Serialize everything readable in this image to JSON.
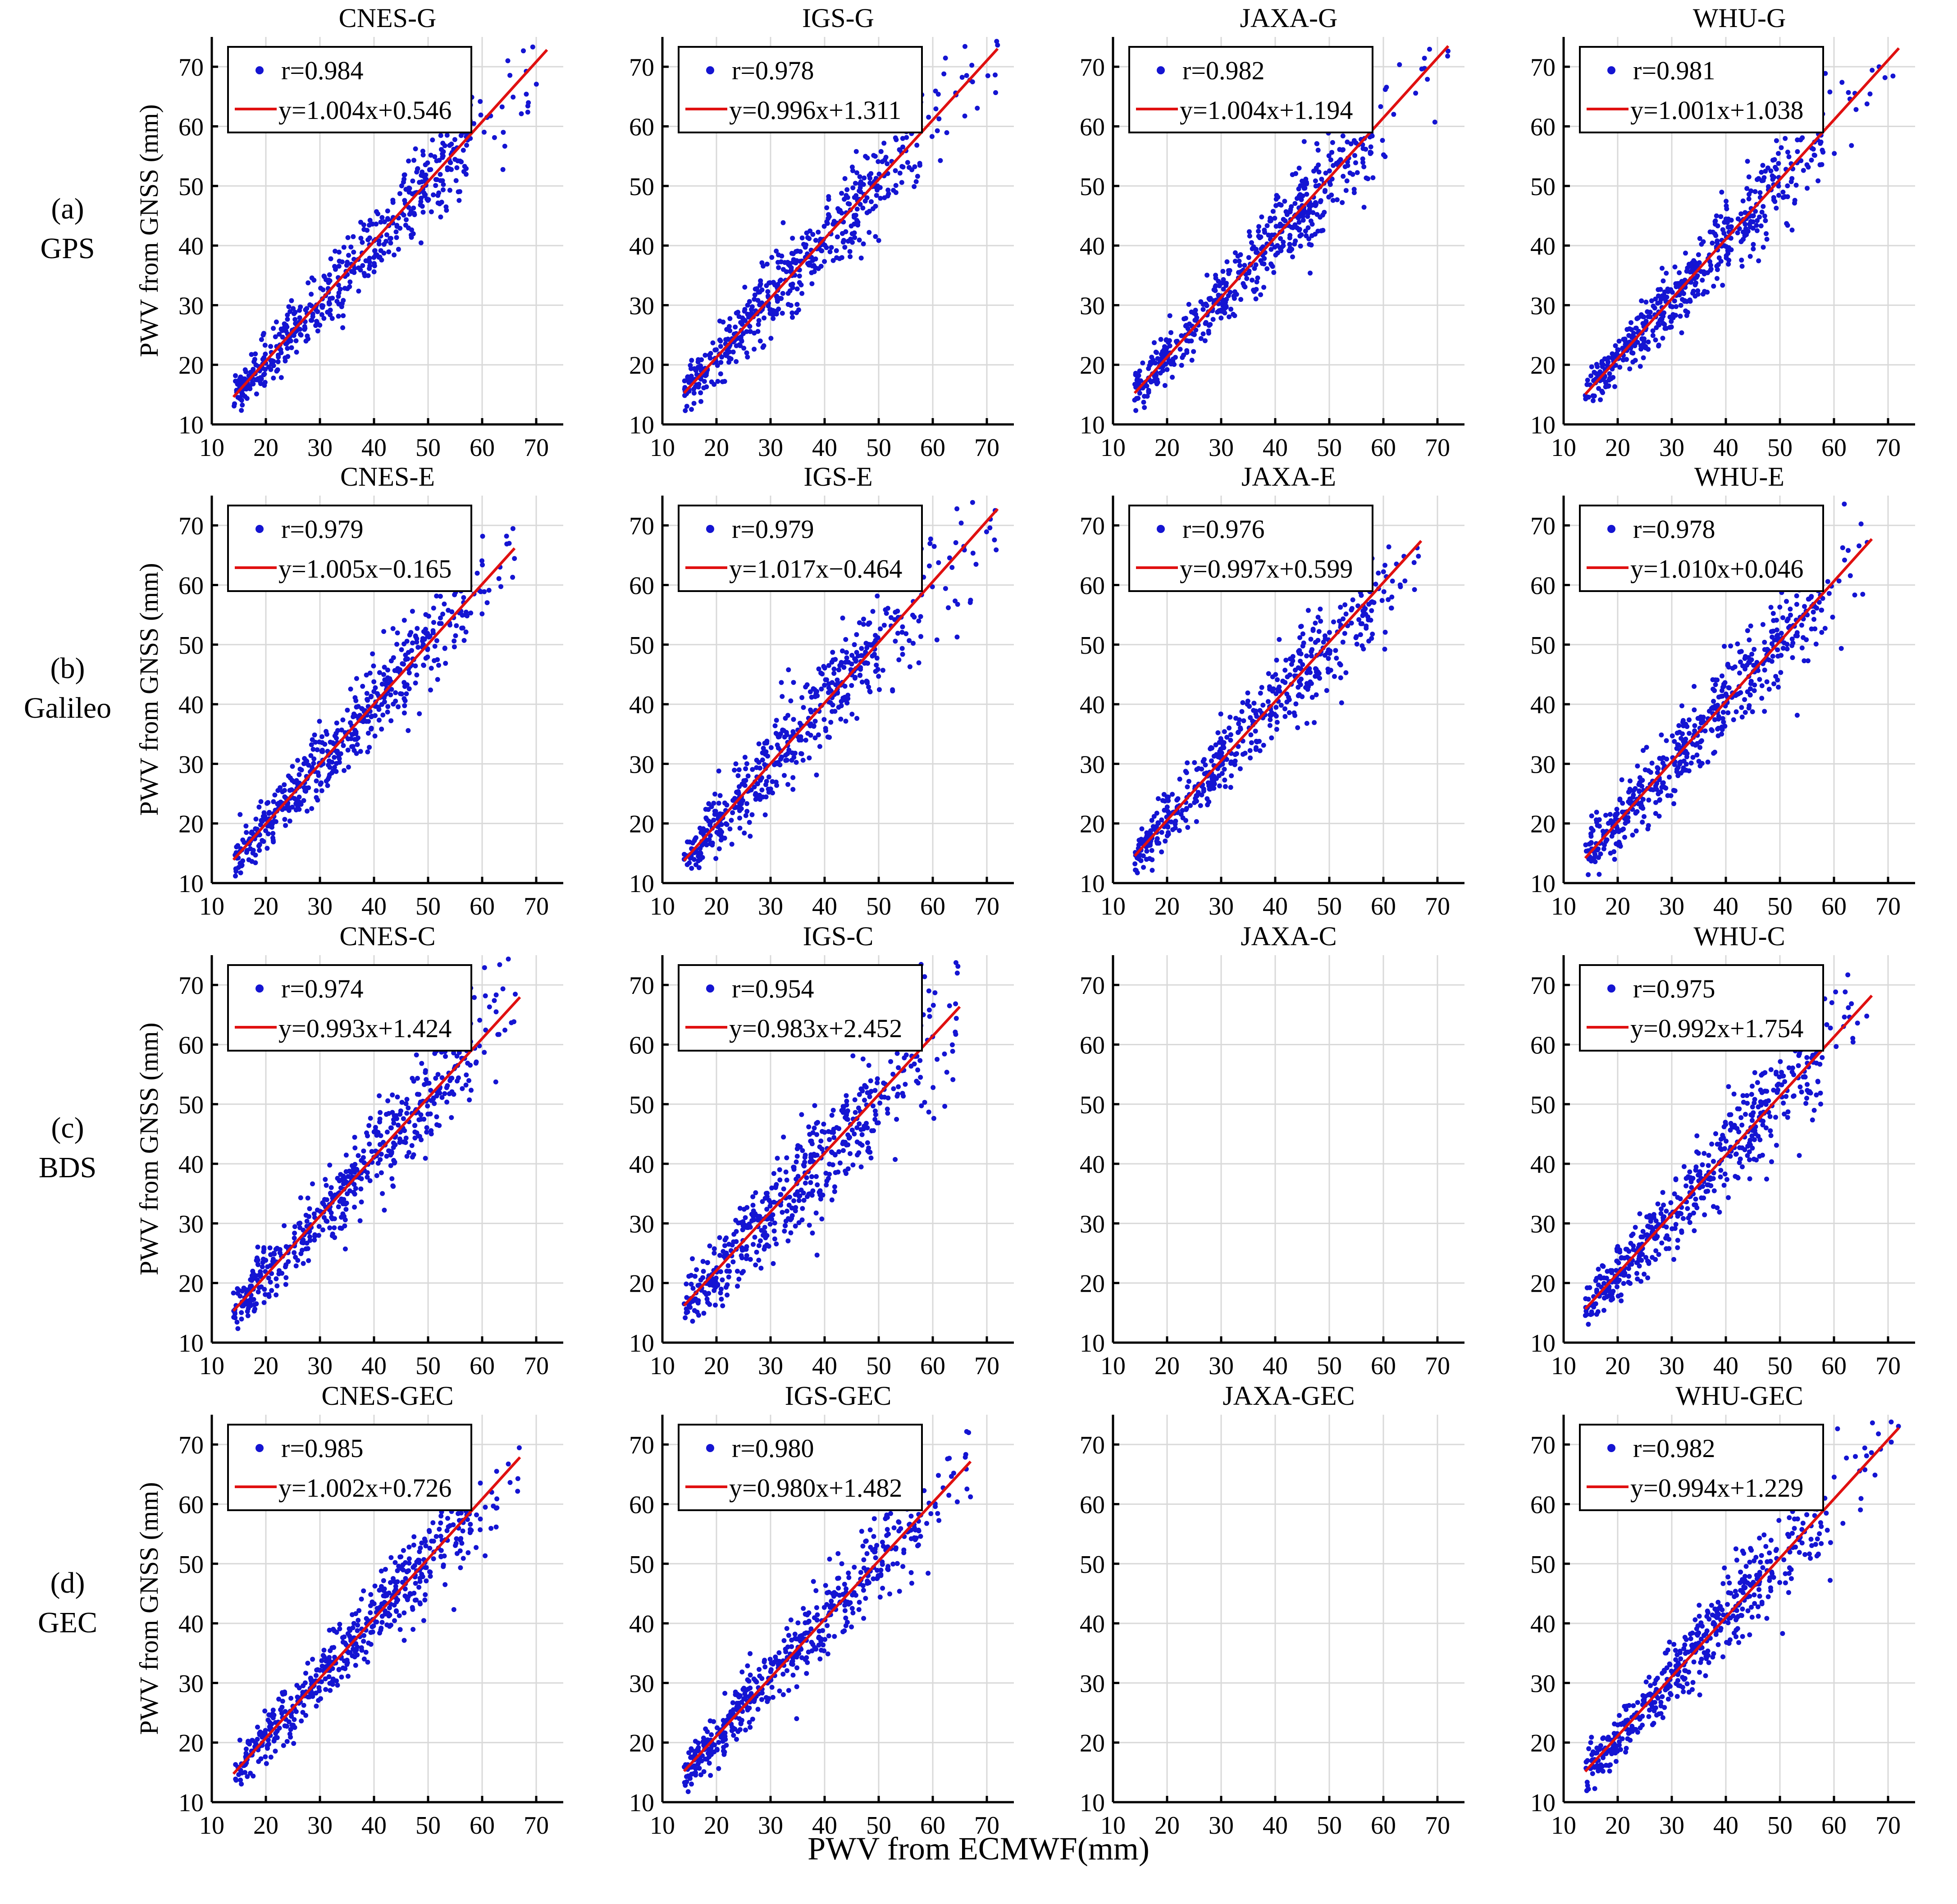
{
  "figure": {
    "xlabel": "PWV from ECMWF(mm)",
    "ylabel": "PWV from GNSS (mm)",
    "colors": {
      "points": "#1414d2",
      "fit": "#e01010",
      "grid": "#d9d9d9",
      "axis": "#000000"
    },
    "rows": [
      {
        "letter": "(a)",
        "system": "GPS"
      },
      {
        "letter": "(b)",
        "system": "Galileo"
      },
      {
        "letter": "(c)",
        "system": "BDS"
      },
      {
        "letter": "(d)",
        "system": "GEC"
      }
    ]
  },
  "chart_data": [
    {
      "type": "scatter",
      "title": "CNES-G",
      "row": 0,
      "col": 0,
      "has_data": true,
      "r_label": "r=0.984",
      "fit_label": "y=1.004x+0.546",
      "slope": 1.004,
      "intercept": 0.546,
      "x_range": [
        14,
        72
      ],
      "scatter": 0.055,
      "xlim": [
        10,
        75
      ],
      "ylim": [
        10,
        75
      ],
      "xticks": [
        10,
        20,
        30,
        40,
        50,
        60,
        70
      ],
      "yticks": [
        10,
        20,
        30,
        40,
        50,
        60,
        70
      ],
      "xlabel": "PWV from ECMWF(mm)",
      "ylabel": "PWV from GNSS (mm)"
    },
    {
      "type": "scatter",
      "title": "IGS-G",
      "row": 0,
      "col": 1,
      "has_data": true,
      "r_label": "r=0.978",
      "fit_label": "y=0.996x+1.311",
      "slope": 0.996,
      "intercept": 1.311,
      "x_range": [
        14,
        72
      ],
      "scatter": 0.065,
      "xlim": [
        10,
        75
      ],
      "ylim": [
        10,
        75
      ],
      "xticks": [
        10,
        20,
        30,
        40,
        50,
        60,
        70
      ],
      "yticks": [
        10,
        20,
        30,
        40,
        50,
        60,
        70
      ]
    },
    {
      "type": "scatter",
      "title": "JAXA-G",
      "row": 0,
      "col": 2,
      "has_data": true,
      "r_label": "r=0.982",
      "fit_label": "y=1.004x+1.194",
      "slope": 1.004,
      "intercept": 1.194,
      "x_range": [
        14,
        72
      ],
      "scatter": 0.058,
      "xlim": [
        10,
        75
      ],
      "ylim": [
        10,
        75
      ],
      "xticks": [
        10,
        20,
        30,
        40,
        50,
        60,
        70
      ],
      "yticks": [
        10,
        20,
        30,
        40,
        50,
        60,
        70
      ]
    },
    {
      "type": "scatter",
      "title": "WHU-G",
      "row": 0,
      "col": 3,
      "has_data": true,
      "r_label": "r=0.981",
      "fit_label": "y=1.001x+1.038",
      "slope": 1.001,
      "intercept": 1.038,
      "x_range": [
        14,
        72
      ],
      "scatter": 0.058,
      "xlim": [
        10,
        75
      ],
      "ylim": [
        10,
        75
      ],
      "xticks": [
        10,
        20,
        30,
        40,
        50,
        60,
        70
      ],
      "yticks": [
        10,
        20,
        30,
        40,
        50,
        60,
        70
      ]
    },
    {
      "type": "scatter",
      "title": "CNES-E",
      "row": 1,
      "col": 0,
      "has_data": true,
      "r_label": "r=0.979",
      "fit_label": "y=1.005x−0.165",
      "slope": 1.005,
      "intercept": -0.165,
      "x_range": [
        14,
        66
      ],
      "scatter": 0.062,
      "xlim": [
        10,
        75
      ],
      "ylim": [
        10,
        75
      ],
      "xticks": [
        10,
        20,
        30,
        40,
        50,
        60,
        70
      ],
      "yticks": [
        10,
        20,
        30,
        40,
        50,
        60,
        70
      ]
    },
    {
      "type": "scatter",
      "title": "IGS-E",
      "row": 1,
      "col": 1,
      "has_data": true,
      "r_label": "r=0.979",
      "fit_label": "y=1.017x−0.464",
      "slope": 1.017,
      "intercept": -0.464,
      "x_range": [
        14,
        72
      ],
      "scatter": 0.075,
      "xlim": [
        10,
        75
      ],
      "ylim": [
        10,
        75
      ],
      "xticks": [
        10,
        20,
        30,
        40,
        50,
        60,
        70
      ],
      "yticks": [
        10,
        20,
        30,
        40,
        50,
        60,
        70
      ]
    },
    {
      "type": "scatter",
      "title": "JAXA-E",
      "row": 1,
      "col": 2,
      "has_data": true,
      "r_label": "r=0.976",
      "fit_label": "y=0.997x+0.599",
      "slope": 0.997,
      "intercept": 0.599,
      "x_range": [
        14,
        67
      ],
      "scatter": 0.065,
      "xlim": [
        10,
        75
      ],
      "ylim": [
        10,
        75
      ],
      "xticks": [
        10,
        20,
        30,
        40,
        50,
        60,
        70
      ],
      "yticks": [
        10,
        20,
        30,
        40,
        50,
        60,
        70
      ]
    },
    {
      "type": "scatter",
      "title": "WHU-E",
      "row": 1,
      "col": 3,
      "has_data": true,
      "r_label": "r=0.978",
      "fit_label": "y=1.010x+0.046",
      "slope": 1.01,
      "intercept": 0.046,
      "x_range": [
        14,
        67
      ],
      "scatter": 0.065,
      "xlim": [
        10,
        75
      ],
      "ylim": [
        10,
        75
      ],
      "xticks": [
        10,
        20,
        30,
        40,
        50,
        60,
        70
      ],
      "yticks": [
        10,
        20,
        30,
        40,
        50,
        60,
        70
      ]
    },
    {
      "type": "scatter",
      "title": "CNES-C",
      "row": 2,
      "col": 0,
      "has_data": true,
      "r_label": "r=0.974",
      "fit_label": "y=0.993x+1.424",
      "slope": 0.993,
      "intercept": 1.424,
      "x_range": [
        14,
        67
      ],
      "scatter": 0.07,
      "xlim": [
        10,
        75
      ],
      "ylim": [
        10,
        75
      ],
      "xticks": [
        10,
        20,
        30,
        40,
        50,
        60,
        70
      ],
      "yticks": [
        10,
        20,
        30,
        40,
        50,
        60,
        70
      ]
    },
    {
      "type": "scatter",
      "title": "IGS-C",
      "row": 2,
      "col": 1,
      "has_data": true,
      "r_label": "r=0.954",
      "fit_label": "y=0.983x+2.452",
      "slope": 0.983,
      "intercept": 2.452,
      "x_range": [
        14,
        65
      ],
      "scatter": 0.095,
      "xlim": [
        10,
        75
      ],
      "ylim": [
        10,
        75
      ],
      "xticks": [
        10,
        20,
        30,
        40,
        50,
        60,
        70
      ],
      "yticks": [
        10,
        20,
        30,
        40,
        50,
        60,
        70
      ]
    },
    {
      "type": "scatter",
      "title": "JAXA-C",
      "row": 2,
      "col": 2,
      "has_data": false,
      "xlim": [
        10,
        75
      ],
      "ylim": [
        10,
        75
      ],
      "xticks": [
        10,
        20,
        30,
        40,
        50,
        60,
        70
      ],
      "yticks": [
        10,
        20,
        30,
        40,
        50,
        60,
        70
      ]
    },
    {
      "type": "scatter",
      "title": "WHU-C",
      "row": 2,
      "col": 3,
      "has_data": true,
      "r_label": "r=0.975",
      "fit_label": "y=0.992x+1.754",
      "slope": 0.992,
      "intercept": 1.754,
      "x_range": [
        14,
        67
      ],
      "scatter": 0.07,
      "xlim": [
        10,
        75
      ],
      "ylim": [
        10,
        75
      ],
      "xticks": [
        10,
        20,
        30,
        40,
        50,
        60,
        70
      ],
      "yticks": [
        10,
        20,
        30,
        40,
        50,
        60,
        70
      ]
    },
    {
      "type": "scatter",
      "title": "CNES-GEC",
      "row": 3,
      "col": 0,
      "has_data": true,
      "r_label": "r=0.985",
      "fit_label": "y=1.002x+0.726",
      "slope": 1.002,
      "intercept": 0.726,
      "x_range": [
        14,
        67
      ],
      "scatter": 0.055,
      "xlim": [
        10,
        75
      ],
      "ylim": [
        10,
        75
      ],
      "xticks": [
        10,
        20,
        30,
        40,
        50,
        60,
        70
      ],
      "yticks": [
        10,
        20,
        30,
        40,
        50,
        60,
        70
      ]
    },
    {
      "type": "scatter",
      "title": "IGS-GEC",
      "row": 3,
      "col": 1,
      "has_data": true,
      "r_label": "r=0.980",
      "fit_label": "y=0.980x+1.482",
      "slope": 0.98,
      "intercept": 1.482,
      "x_range": [
        14,
        67
      ],
      "scatter": 0.06,
      "xlim": [
        10,
        75
      ],
      "ylim": [
        10,
        75
      ],
      "xticks": [
        10,
        20,
        30,
        40,
        50,
        60,
        70
      ],
      "yticks": [
        10,
        20,
        30,
        40,
        50,
        60,
        70
      ]
    },
    {
      "type": "scatter",
      "title": "JAXA-GEC",
      "row": 3,
      "col": 2,
      "has_data": false,
      "xlim": [
        10,
        75
      ],
      "ylim": [
        10,
        75
      ],
      "xticks": [
        10,
        20,
        30,
        40,
        50,
        60,
        70
      ],
      "yticks": [
        10,
        20,
        30,
        40,
        50,
        60,
        70
      ]
    },
    {
      "type": "scatter",
      "title": "WHU-GEC",
      "row": 3,
      "col": 3,
      "has_data": true,
      "r_label": "r=0.982",
      "fit_label": "y=0.994x+1.229",
      "slope": 0.994,
      "intercept": 1.229,
      "x_range": [
        14,
        72
      ],
      "scatter": 0.058,
      "xlim": [
        10,
        75
      ],
      "ylim": [
        10,
        75
      ],
      "xticks": [
        10,
        20,
        30,
        40,
        50,
        60,
        70
      ],
      "yticks": [
        10,
        20,
        30,
        40,
        50,
        60,
        70
      ]
    }
  ]
}
